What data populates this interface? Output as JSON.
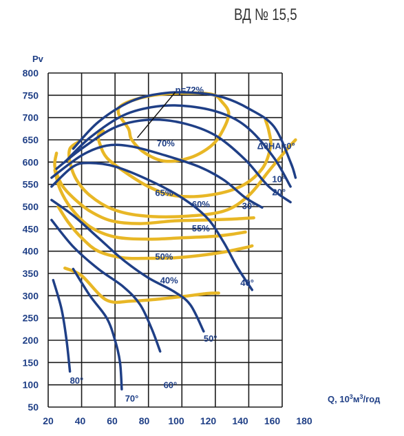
{
  "title": "ВД № 15,5",
  "chart_data": {
    "type": "line",
    "ylabel": "Pv",
    "xlabel_parts": [
      "Q, 10",
      "3",
      "м",
      "3",
      "/год"
    ],
    "xlim": [
      20,
      160
    ],
    "ylim": [
      50,
      800
    ],
    "x_ticks": [
      20,
      40,
      60,
      80,
      100,
      120,
      140,
      160,
      180
    ],
    "y_ticks": [
      50,
      100,
      150,
      200,
      250,
      300,
      350,
      400,
      450,
      500,
      550,
      600,
      650,
      700,
      750,
      800
    ],
    "blue_color": "#1f3f86",
    "gold_color": "#e8b726",
    "grid": true,
    "series": [
      {
        "name": "ΔθНА=0°",
        "kind": "blade-angle",
        "label_at": [
          145,
          637
        ],
        "points": [
          [
            35,
            630
          ],
          [
            50,
            690
          ],
          [
            70,
            737
          ],
          [
            90,
            755
          ],
          [
            110,
            755
          ],
          [
            125,
            745
          ],
          [
            140,
            720
          ],
          [
            155,
            680
          ],
          [
            165,
            600
          ],
          [
            168,
            565
          ]
        ]
      },
      {
        "name": "10°",
        "kind": "blade-angle",
        "label_at": [
          154,
          563
        ],
        "points": [
          [
            30,
            600
          ],
          [
            45,
            655
          ],
          [
            65,
            705
          ],
          [
            85,
            725
          ],
          [
            105,
            725
          ],
          [
            125,
            708
          ],
          [
            140,
            675
          ],
          [
            155,
            610
          ],
          [
            165,
            545
          ]
        ]
      },
      {
        "name": "20°",
        "kind": "blade-angle",
        "label_at": [
          154,
          533
        ],
        "points": [
          [
            25,
            585
          ],
          [
            40,
            630
          ],
          [
            60,
            678
          ],
          [
            80,
            695
          ],
          [
            100,
            688
          ],
          [
            120,
            660
          ],
          [
            138,
            605
          ],
          [
            152,
            545
          ],
          [
            165,
            510
          ]
        ]
      },
      {
        "name": "30°",
        "kind": "blade-angle",
        "label_at": [
          136,
          502
        ],
        "points": [
          [
            22,
            565
          ],
          [
            40,
            615
          ],
          [
            55,
            637
          ],
          [
            70,
            635
          ],
          [
            90,
            615
          ],
          [
            110,
            590
          ],
          [
            125,
            560
          ],
          [
            138,
            520
          ],
          [
            148,
            498
          ]
        ]
      },
      {
        "name": "40°",
        "kind": "blade-angle",
        "label_at": [
          135,
          330
        ],
        "points": [
          [
            22,
            545
          ],
          [
            35,
            590
          ],
          [
            45,
            598
          ],
          [
            60,
            590
          ],
          [
            80,
            560
          ],
          [
            100,
            520
          ],
          [
            115,
            475
          ],
          [
            125,
            420
          ],
          [
            133,
            365
          ],
          [
            142,
            313
          ]
        ]
      },
      {
        "name": "50°",
        "kind": "blade-angle",
        "label_at": [
          113,
          205
        ],
        "points": [
          [
            22,
            515
          ],
          [
            35,
            480
          ],
          [
            50,
            430
          ],
          [
            65,
            380
          ],
          [
            80,
            340
          ],
          [
            95,
            310
          ],
          [
            105,
            280
          ],
          [
            113,
            220
          ]
        ]
      },
      {
        "name": "60°",
        "kind": "blade-angle",
        "label_at": [
          89,
          100
        ],
        "points": [
          [
            22,
            470
          ],
          [
            35,
            410
          ],
          [
            50,
            360
          ],
          [
            65,
            320
          ],
          [
            75,
            280
          ],
          [
            82,
            225
          ],
          [
            87,
            175
          ]
        ]
      },
      {
        "name": "70°",
        "kind": "blade-angle",
        "label_at": [
          66,
          70
        ],
        "points": [
          [
            35,
            360
          ],
          [
            45,
            300
          ],
          [
            55,
            250
          ],
          [
            60,
            200
          ],
          [
            63,
            150
          ],
          [
            64,
            90
          ]
        ]
      },
      {
        "name": "80°",
        "kind": "blade-angle",
        "label_at": [
          33,
          110
        ],
        "points": [
          [
            23,
            335
          ],
          [
            28,
            270
          ],
          [
            31,
            200
          ],
          [
            33,
            130
          ]
        ]
      }
    ],
    "efficiency_curves": [
      {
        "name": "η=72%",
        "label_at": [
          96,
          763
        ],
        "closed": true,
        "points": [
          [
            68,
            675
          ],
          [
            62,
            710
          ],
          [
            65,
            730
          ],
          [
            80,
            748
          ],
          [
            100,
            755
          ],
          [
            118,
            752
          ],
          [
            124,
            735
          ],
          [
            128,
            710
          ],
          [
            125,
            675
          ],
          [
            118,
            638
          ],
          [
            105,
            610
          ],
          [
            90,
            602
          ],
          [
            78,
            620
          ],
          [
            70,
            650
          ]
        ]
      },
      {
        "name": "70%",
        "label_at": [
          85,
          643
        ],
        "closed": false,
        "points": [
          [
            53,
            670
          ],
          [
            50,
            660
          ],
          [
            51,
            640
          ],
          [
            55,
            610
          ],
          [
            65,
            580
          ],
          [
            80,
            545
          ],
          [
            95,
            525
          ],
          [
            115,
            525
          ],
          [
            135,
            545
          ],
          [
            148,
            585
          ],
          [
            153,
            635
          ],
          [
            152,
            670
          ],
          [
            150,
            695
          ]
        ]
      },
      {
        "name": "65%",
        "label_at": [
          84,
          532
        ],
        "closed": false,
        "points": [
          [
            38,
            645
          ],
          [
            33,
            630
          ],
          [
            33,
            600
          ],
          [
            37,
            560
          ],
          [
            45,
            525
          ],
          [
            58,
            495
          ],
          [
            75,
            480
          ],
          [
            100,
            478
          ],
          [
            125,
            490
          ],
          [
            140,
            525
          ],
          [
            152,
            580
          ],
          [
            162,
            625
          ],
          [
            168,
            650
          ]
        ]
      },
      {
        "name": "60%",
        "label_at": [
          106,
          506
        ],
        "closed": false,
        "points": [
          [
            25,
            620
          ],
          [
            24,
            590
          ],
          [
            28,
            550
          ],
          [
            35,
            520
          ],
          [
            45,
            490
          ],
          [
            58,
            468
          ],
          [
            75,
            462
          ],
          [
            95,
            468
          ],
          [
            115,
            470
          ],
          [
            130,
            472
          ],
          [
            143,
            475
          ]
        ]
      },
      {
        "name": "55%",
        "label_at": [
          106,
          452
        ],
        "closed": false,
        "points": [
          [
            24,
            582
          ],
          [
            27,
            540
          ],
          [
            34,
            495
          ],
          [
            45,
            455
          ],
          [
            60,
            432
          ],
          [
            80,
            427
          ],
          [
            100,
            430
          ],
          [
            118,
            433
          ],
          [
            130,
            438
          ],
          [
            138,
            443
          ]
        ]
      },
      {
        "name": "50%",
        "label_at": [
          84,
          389
        ],
        "closed": false,
        "points": [
          [
            26,
            500
          ],
          [
            32,
            465
          ],
          [
            40,
            430
          ],
          [
            50,
            400
          ],
          [
            65,
            385
          ],
          [
            80,
            384
          ],
          [
            95,
            385
          ],
          [
            110,
            390
          ],
          [
            125,
            398
          ],
          [
            138,
            408
          ],
          [
            142,
            412
          ]
        ]
      },
      {
        "name": "40%",
        "label_at": [
          87,
          335
        ],
        "closed": false,
        "points": [
          [
            30,
            362
          ],
          [
            40,
            345
          ],
          [
            55,
            290
          ],
          [
            70,
            288
          ],
          [
            85,
            292
          ],
          [
            100,
            298
          ],
          [
            115,
            305
          ],
          [
            122,
            306
          ]
        ]
      }
    ]
  }
}
